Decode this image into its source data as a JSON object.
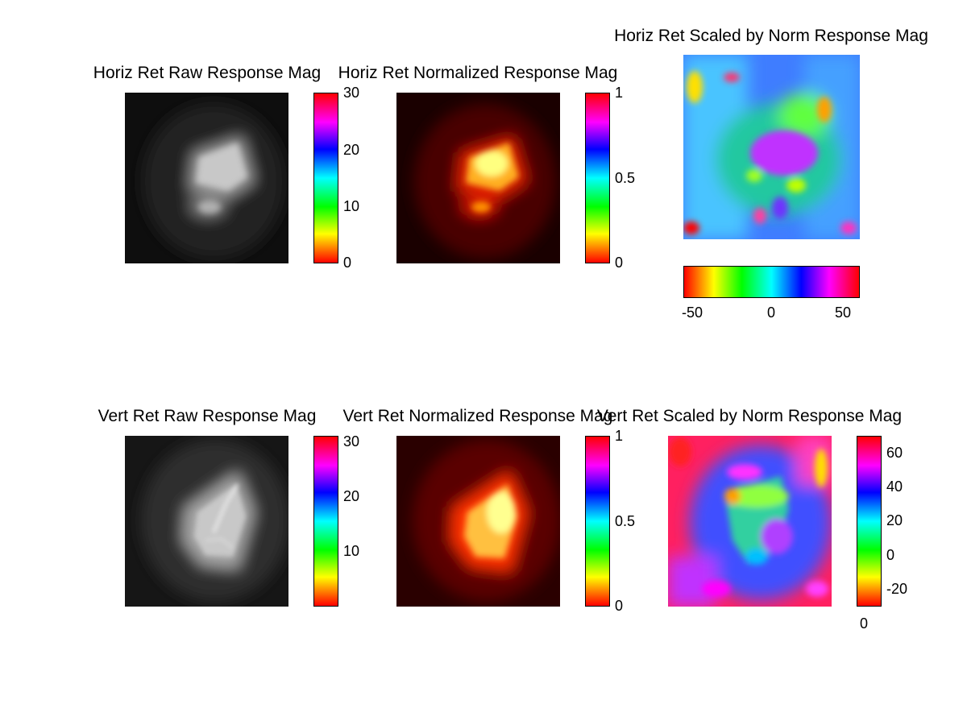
{
  "chart_data": [
    {
      "type": "heatmap",
      "title": "Horiz Ret Raw Response Mag",
      "colormap": "grayscale",
      "colorbar": {
        "orientation": "vertical",
        "colormap": "hsv",
        "range": [
          0,
          30
        ],
        "ticks": [
          0,
          10,
          20,
          30
        ],
        "tick_labels": [
          "0",
          "10",
          "20",
          "30"
        ]
      }
    },
    {
      "type": "heatmap",
      "title": "Horiz Ret Normalized Response Mag",
      "colormap": "hot",
      "colorbar": {
        "orientation": "vertical",
        "colormap": "hsv",
        "range": [
          0,
          1
        ],
        "ticks": [
          0,
          0.5,
          1
        ],
        "tick_labels": [
          "0",
          "0.5",
          "1"
        ]
      }
    },
    {
      "type": "heatmap",
      "title": "Horiz Ret Scaled by Norm Response Mag",
      "colormap": "hsv",
      "colorbar": {
        "orientation": "horizontal",
        "colormap": "hsv",
        "range": [
          -60,
          60
        ],
        "ticks": [
          -50,
          0,
          50
        ],
        "tick_labels": [
          "-50",
          "0",
          "50"
        ]
      }
    },
    {
      "type": "heatmap",
      "title": "Vert Ret Raw Response Mag",
      "colormap": "grayscale",
      "colorbar": {
        "orientation": "vertical",
        "colormap": "hsv",
        "range": [
          0,
          31
        ],
        "ticks": [
          10,
          20,
          30
        ],
        "tick_labels": [
          "10",
          "20",
          "30"
        ]
      }
    },
    {
      "type": "heatmap",
      "title": "Vert Ret Normalized Response Mag",
      "colormap": "hot",
      "colorbar": {
        "orientation": "vertical",
        "colormap": "hsv",
        "range": [
          0,
          1
        ],
        "ticks": [
          0,
          0.5,
          1
        ],
        "tick_labels": [
          "0",
          "0.5",
          "1"
        ]
      }
    },
    {
      "type": "heatmap",
      "title": "Vert Ret Scaled by Norm Response Mag",
      "colormap": "hsv",
      "colorbar": {
        "orientation": "vertical",
        "colormap": "hsv",
        "range": [
          -30,
          70
        ],
        "ticks": [
          -20,
          0,
          20,
          40,
          60
        ],
        "tick_labels": [
          "-20",
          "0",
          "20",
          "40",
          "60"
        ],
        "extra_label": "0"
      }
    }
  ]
}
